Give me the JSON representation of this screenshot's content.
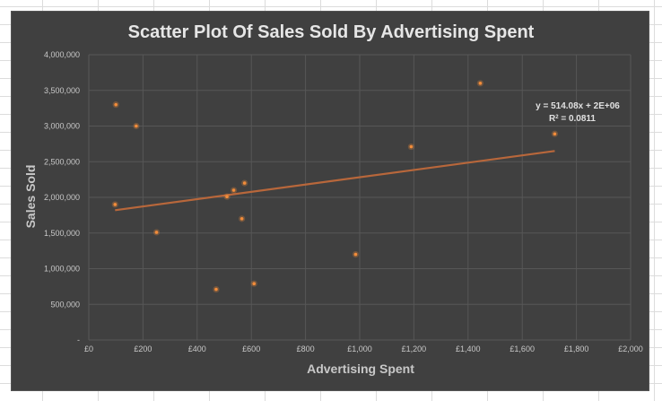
{
  "chart_data": {
    "type": "scatter",
    "title": "Scatter Plot Of Sales Sold By Advertising Spent",
    "xlabel": "Advertising Spent",
    "ylabel": "Sales Sold",
    "xlim": [
      0,
      2000
    ],
    "ylim": [
      0,
      4000000
    ],
    "x_ticks": [
      "£0",
      "£200",
      "£400",
      "£600",
      "£800",
      "£1,000",
      "£1,200",
      "£1,400",
      "£1,600",
      "£1,800",
      "£2,000"
    ],
    "y_ticks": [
      "-",
      "500,000",
      "1,000,000",
      "1,500,000",
      "2,000,000",
      "2,500,000",
      "3,000,000",
      "3,500,000",
      "4,000,000"
    ],
    "grid": true,
    "legend": "none",
    "marker_color": "#f28c3a",
    "trendline_color": "#b8673b",
    "points": [
      {
        "x": 100,
        "y": 3300000
      },
      {
        "x": 175,
        "y": 3000000
      },
      {
        "x": 97,
        "y": 1900000
      },
      {
        "x": 250,
        "y": 1510000
      },
      {
        "x": 470,
        "y": 710000
      },
      {
        "x": 510,
        "y": 2010000
      },
      {
        "x": 535,
        "y": 2100000
      },
      {
        "x": 565,
        "y": 1700000
      },
      {
        "x": 575,
        "y": 2200000
      },
      {
        "x": 610,
        "y": 790000
      },
      {
        "x": 985,
        "y": 1200000
      },
      {
        "x": 1190,
        "y": 2710000
      },
      {
        "x": 1445,
        "y": 3600000
      },
      {
        "x": 1720,
        "y": 2890000
      }
    ],
    "trendline": {
      "x": [
        97,
        1720
      ],
      "y": [
        1820000,
        2650000
      ],
      "equation": "y = 514.08x + 2E+06",
      "r2_prefix": "R",
      "r2_suffix": " = 0.0811"
    }
  }
}
